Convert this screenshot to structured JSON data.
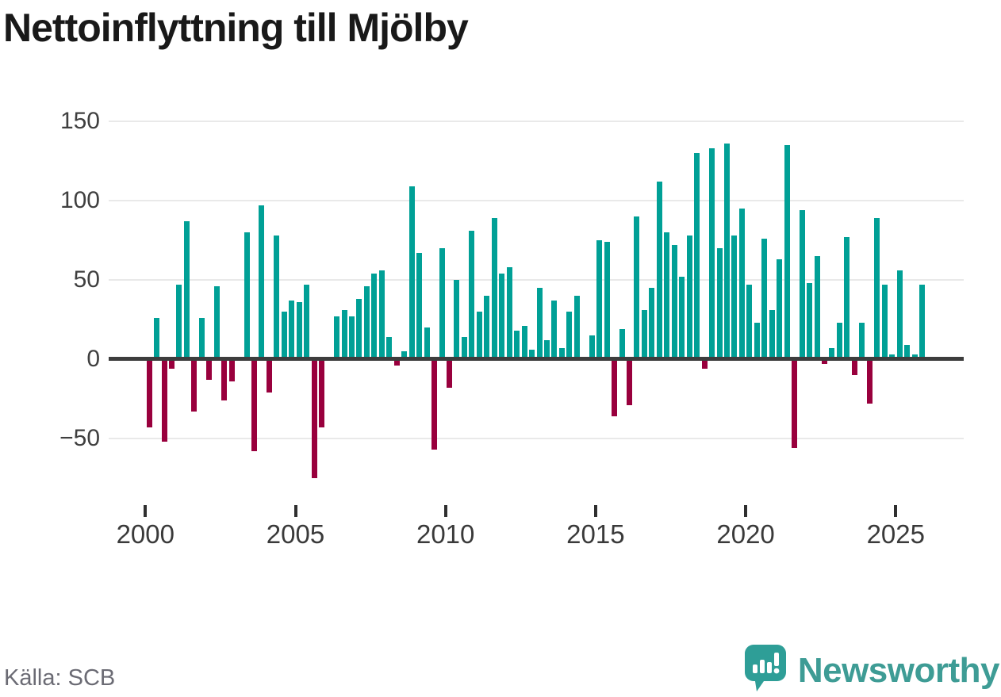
{
  "title": "Nettoinflyttning till Mjölby",
  "source": "Källa: SCB",
  "brand": {
    "name": "Newsworthy",
    "bubble_color": "#2e9e97",
    "wordmark_color": "#3e9c95"
  },
  "chart_data": {
    "type": "bar",
    "title": "Nettoinflyttning till Mjölby",
    "x_unit": "quarter",
    "start_year": 2000,
    "end_year": 2025,
    "x_tick_labels": [
      "2000",
      "2005",
      "2010",
      "2015",
      "2020",
      "2025"
    ],
    "y_ticks": [
      150,
      100,
      50,
      0,
      -50
    ],
    "y_tick_labels": [
      "150",
      "100",
      "50",
      "0",
      "−50"
    ],
    "ylim": [
      -80,
      155
    ],
    "grid": true,
    "legend": "none",
    "positive_color": "#00a096",
    "negative_color": "#99003d",
    "values": [
      -43,
      26,
      -52,
      -6,
      47,
      87,
      -33,
      26,
      -13,
      46,
      -26,
      -14,
      0,
      80,
      -58,
      97,
      -21,
      78,
      30,
      37,
      36,
      47,
      -75,
      -43,
      0,
      27,
      31,
      27,
      38,
      46,
      54,
      56,
      14,
      -4,
      5,
      109,
      67,
      20,
      -57,
      70,
      -18,
      50,
      14,
      81,
      30,
      40,
      89,
      54,
      58,
      18,
      21,
      6,
      45,
      12,
      37,
      7,
      30,
      40,
      0,
      15,
      75,
      74,
      -36,
      19,
      -29,
      90,
      31,
      45,
      112,
      80,
      72,
      52,
      78,
      130,
      -6,
      133,
      70,
      136,
      78,
      95,
      47,
      23,
      76,
      31,
      63,
      135,
      -56,
      94,
      48,
      65,
      -3,
      7,
      23,
      77,
      -10,
      23,
      -28,
      89,
      47,
      3,
      56,
      9,
      3,
      47
    ]
  }
}
